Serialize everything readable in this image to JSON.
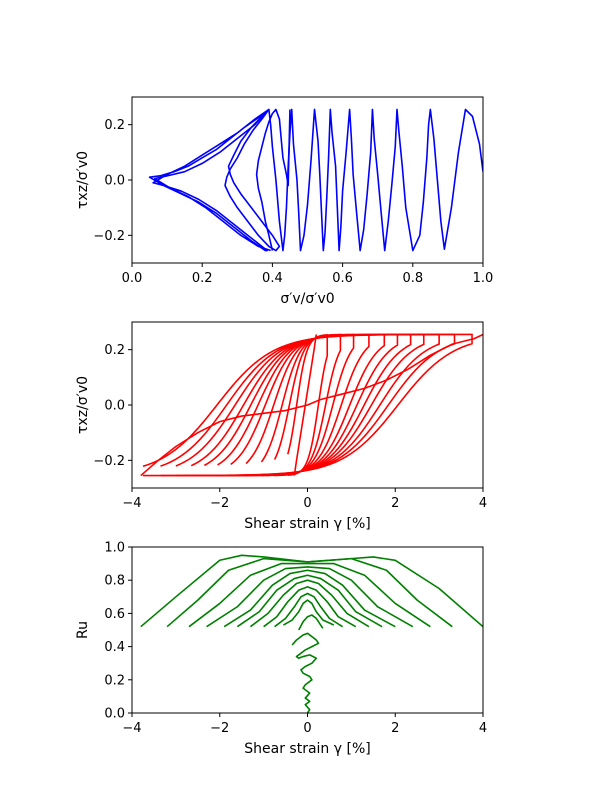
{
  "chart_data": [
    {
      "type": "line",
      "xlabel": "σ′v/σ′v0",
      "ylabel": "τxz/σ′v0",
      "xlim": [
        0.0,
        1.0
      ],
      "ylim": [
        -0.3,
        0.3
      ],
      "xticks": [
        0.0,
        0.2,
        0.4,
        0.6,
        0.8,
        1.0
      ],
      "xtick_labels": [
        "0.0",
        "0.2",
        "0.4",
        "0.6",
        "0.8",
        "1.0"
      ],
      "yticks": [
        -0.2,
        0.0,
        0.2
      ],
      "ytick_labels": [
        "−0.2",
        "0.0",
        "0.2"
      ],
      "grid": false,
      "color": "#0000ff",
      "series": [
        {
          "x": [
            1.0,
            0.99,
            0.97,
            0.95,
            0.93,
            0.91,
            0.89,
            0.88,
            0.87,
            0.86,
            0.85,
            0.845,
            0.84,
            0.83,
            0.82,
            0.8,
            0.78,
            0.77,
            0.76,
            0.755,
            0.75,
            0.74,
            0.73,
            0.72,
            0.71,
            0.7,
            0.69,
            0.685,
            0.68,
            0.67,
            0.66,
            0.65,
            0.64,
            0.63,
            0.625,
            0.62,
            0.61,
            0.6,
            0.595,
            0.59,
            0.585,
            0.58,
            0.57,
            0.565,
            0.56,
            0.555,
            0.55,
            0.545,
            0.54,
            0.535,
            0.53,
            0.52,
            0.51,
            0.5,
            0.49,
            0.48,
            0.475,
            0.47,
            0.46,
            0.455,
            0.45,
            0.445,
            0.44,
            0.435,
            0.43,
            0.42,
            0.41,
            0.4,
            0.395,
            0.39
          ],
          "y": [
            0.03,
            0.13,
            0.23,
            0.255,
            0.1,
            -0.1,
            -0.25,
            -0.15,
            0.0,
            0.15,
            0.255,
            0.2,
            0.08,
            -0.08,
            -0.2,
            -0.255,
            -0.1,
            0.05,
            0.18,
            0.255,
            0.12,
            -0.02,
            -0.15,
            -0.255,
            -0.12,
            0.02,
            0.15,
            0.255,
            0.1,
            -0.05,
            -0.18,
            -0.255,
            -0.12,
            0.02,
            0.15,
            0.255,
            0.1,
            -0.04,
            -0.17,
            -0.255,
            -0.1,
            0.05,
            0.17,
            0.255,
            0.08,
            -0.06,
            -0.19,
            -0.255,
            -0.12,
            0.02,
            0.14,
            0.255,
            0.07,
            -0.09,
            -0.2,
            -0.255,
            -0.12,
            0.0,
            0.13,
            0.255,
            0.17,
            0.05,
            -0.1,
            -0.2,
            -0.255,
            -0.15,
            0.0,
            0.12,
            0.2,
            0.255
          ]
        },
        {
          "x": [
            0.39,
            0.36,
            0.32,
            0.28,
            0.24,
            0.2,
            0.16,
            0.12,
            0.08,
            0.05,
            0.09,
            0.14,
            0.19,
            0.24,
            0.29,
            0.34,
            0.38,
            0.385,
            0.34,
            0.29,
            0.24,
            0.19,
            0.14,
            0.09,
            0.06,
            0.1,
            0.15,
            0.2,
            0.25,
            0.3,
            0.35,
            0.39,
            0.39,
            0.35,
            0.3,
            0.25,
            0.2,
            0.15,
            0.1,
            0.065,
            0.11,
            0.16,
            0.21,
            0.26,
            0.31,
            0.36,
            0.395
          ],
          "y": [
            0.255,
            0.225,
            0.19,
            0.15,
            0.11,
            0.08,
            0.05,
            0.03,
            0.015,
            0.01,
            -0.02,
            -0.05,
            -0.08,
            -0.12,
            -0.17,
            -0.22,
            -0.255,
            -0.255,
            -0.21,
            -0.16,
            -0.11,
            -0.07,
            -0.04,
            -0.02,
            -0.01,
            0.02,
            0.05,
            0.09,
            0.13,
            0.17,
            0.22,
            0.255,
            0.255,
            0.2,
            0.15,
            0.1,
            0.06,
            0.03,
            0.015,
            0.005,
            -0.03,
            -0.06,
            -0.1,
            -0.15,
            -0.2,
            -0.24,
            -0.255
          ]
        },
        {
          "x": [
            0.39,
            0.37,
            0.345,
            0.32,
            0.3,
            0.28,
            0.27,
            0.265,
            0.28,
            0.3,
            0.33,
            0.36,
            0.39,
            0.41,
            0.42,
            0.4,
            0.37,
            0.34,
            0.31,
            0.29,
            0.28,
            0.275,
            0.29,
            0.31,
            0.34,
            0.37,
            0.39
          ],
          "y": [
            0.255,
            0.22,
            0.18,
            0.13,
            0.08,
            0.04,
            0.01,
            -0.02,
            -0.06,
            -0.1,
            -0.15,
            -0.2,
            -0.24,
            -0.255,
            -0.24,
            -0.2,
            -0.15,
            -0.1,
            -0.05,
            -0.01,
            0.02,
            0.05,
            0.09,
            0.14,
            0.19,
            0.23,
            0.255
          ]
        },
        {
          "x": [
            0.4,
            0.39,
            0.38,
            0.37,
            0.36,
            0.355,
            0.36,
            0.37,
            0.38,
            0.39,
            0.4,
            0.41,
            0.42,
            0.425,
            0.43,
            0.44,
            0.445,
            0.45
          ],
          "y": [
            -0.255,
            -0.2,
            -0.15,
            -0.08,
            -0.03,
            0.02,
            0.07,
            0.12,
            0.17,
            0.21,
            0.24,
            0.255,
            0.22,
            0.15,
            0.08,
            0.02,
            -0.02,
            0.255
          ]
        }
      ]
    },
    {
      "type": "line",
      "xlabel": "Shear strain γ [%]",
      "ylabel": "τxz/σ′v0",
      "xlim": [
        -4,
        4
      ],
      "ylim": [
        -0.3,
        0.3
      ],
      "xticks": [
        -4,
        -2,
        0,
        2,
        4
      ],
      "xtick_labels": [
        "−4",
        "−2",
        "0",
        "2",
        "4"
      ],
      "yticks": [
        -0.2,
        0.0,
        0.2
      ],
      "ytick_labels": [
        "−0.2",
        "0.0",
        "0.2"
      ],
      "grid": false,
      "color": "#ff0000",
      "loop_amplitudes": [
        0.45,
        0.75,
        1.05,
        1.4,
        1.75,
        2.05,
        2.35,
        2.65,
        3.0,
        3.35,
        3.75
      ],
      "series": [
        {
          "x": [
            -3.8,
            -3.4,
            -3.0,
            -2.5,
            -2.0,
            -1.5,
            -1.0,
            -0.5,
            0.0,
            0.3,
            0.8,
            1.3,
            1.8,
            2.3,
            2.8,
            3.3,
            3.8,
            4.0
          ],
          "y": [
            -0.255,
            -0.2,
            -0.15,
            -0.1,
            -0.06,
            -0.04,
            -0.03,
            -0.02,
            0.0,
            0.02,
            0.04,
            0.06,
            0.09,
            0.13,
            0.18,
            0.22,
            0.24,
            0.255
          ]
        },
        {
          "x": [
            -0.3,
            -0.25,
            -0.2,
            -0.15,
            -0.1,
            -0.05,
            0.0,
            0.05,
            0.1,
            0.15,
            0.2
          ],
          "y": [
            -0.255,
            -0.2,
            -0.15,
            -0.1,
            -0.05,
            0.0,
            0.05,
            0.1,
            0.15,
            0.2,
            0.255
          ]
        }
      ]
    },
    {
      "type": "line",
      "xlabel": "Shear strain γ [%]",
      "ylabel": "Ru",
      "xlim": [
        -4,
        4
      ],
      "ylim": [
        0.0,
        1.0
      ],
      "xticks": [
        -4,
        -2,
        0,
        2,
        4
      ],
      "xtick_labels": [
        "−4",
        "−2",
        "0",
        "2",
        "4"
      ],
      "yticks": [
        0.0,
        0.2,
        0.4,
        0.6,
        0.8,
        1.0
      ],
      "ytick_labels": [
        "0.0",
        "0.2",
        "0.4",
        "0.6",
        "0.8",
        "1.0"
      ],
      "grid": false,
      "color": "#008000",
      "series": [
        {
          "x": [
            -3.8,
            -3.0,
            -2.0,
            -1.5,
            -1.0,
            0.0,
            1.0,
            1.5,
            2.0,
            3.0,
            4.0
          ],
          "y": [
            0.52,
            0.7,
            0.92,
            0.95,
            0.94,
            0.91,
            0.93,
            0.94,
            0.92,
            0.75,
            0.52
          ]
        },
        {
          "x": [
            -3.2,
            -2.5,
            -1.8,
            -1.0,
            0.0,
            1.0,
            1.8,
            2.5,
            3.3
          ],
          "y": [
            0.52,
            0.68,
            0.86,
            0.93,
            0.91,
            0.93,
            0.86,
            0.68,
            0.52
          ]
        },
        {
          "x": [
            -2.7,
            -2.0,
            -1.3,
            -0.6,
            0.0,
            0.6,
            1.3,
            2.0,
            2.8
          ],
          "y": [
            0.52,
            0.66,
            0.83,
            0.9,
            0.9,
            0.9,
            0.83,
            0.66,
            0.52
          ]
        },
        {
          "x": [
            -2.3,
            -1.6,
            -1.0,
            -0.5,
            0.0,
            0.5,
            1.0,
            1.6,
            2.4
          ],
          "y": [
            0.52,
            0.64,
            0.8,
            0.87,
            0.88,
            0.87,
            0.8,
            0.64,
            0.52
          ]
        },
        {
          "x": [
            -1.9,
            -1.3,
            -0.8,
            -0.4,
            0.0,
            0.4,
            0.8,
            1.3,
            2.0
          ],
          "y": [
            0.52,
            0.62,
            0.77,
            0.84,
            0.86,
            0.84,
            0.77,
            0.62,
            0.52
          ]
        },
        {
          "x": [
            -1.6,
            -1.1,
            -0.7,
            -0.3,
            0.0,
            0.3,
            0.7,
            1.1,
            1.7
          ],
          "y": [
            0.52,
            0.61,
            0.74,
            0.81,
            0.83,
            0.81,
            0.74,
            0.61,
            0.52
          ]
        },
        {
          "x": [
            -1.3,
            -0.9,
            -0.55,
            -0.25,
            0.0,
            0.25,
            0.55,
            0.9,
            1.4
          ],
          "y": [
            0.52,
            0.6,
            0.71,
            0.78,
            0.8,
            0.78,
            0.71,
            0.6,
            0.52
          ]
        },
        {
          "x": [
            -1.0,
            -0.7,
            -0.45,
            -0.2,
            0.0,
            0.2,
            0.45,
            0.7,
            1.1
          ],
          "y": [
            0.52,
            0.58,
            0.67,
            0.74,
            0.76,
            0.74,
            0.67,
            0.58,
            0.52
          ]
        },
        {
          "x": [
            -0.75,
            -0.5,
            -0.3,
            -0.15,
            0.0,
            0.15,
            0.3,
            0.5,
            0.8
          ],
          "y": [
            0.52,
            0.57,
            0.64,
            0.7,
            0.72,
            0.7,
            0.64,
            0.57,
            0.52
          ]
        },
        {
          "x": [
            -0.55,
            -0.35,
            -0.2,
            -0.1,
            0.0,
            0.1,
            0.2,
            0.35,
            0.6
          ],
          "y": [
            0.53,
            0.56,
            0.61,
            0.66,
            0.68,
            0.66,
            0.61,
            0.56,
            0.53
          ]
        },
        {
          "x": [
            -0.2,
            -0.1,
            0.0,
            0.1,
            0.2,
            0.25,
            0.3,
            0.35
          ],
          "y": [
            0.5,
            0.55,
            0.58,
            0.59,
            0.57,
            0.55,
            0.53,
            0.51
          ]
        },
        {
          "x": [
            -0.35,
            -0.25,
            -0.1,
            0.0,
            0.1,
            0.2,
            0.25,
            0.1,
            -0.05,
            -0.15,
            -0.25,
            -0.2,
            -0.1,
            0.05,
            0.2,
            0.1,
            -0.05,
            -0.15,
            -0.1,
            0.05,
            0.1,
            -0.05,
            -0.1,
            0.05,
            -0.05,
            0.05,
            -0.05,
            0.05,
            0.0
          ],
          "y": [
            0.41,
            0.44,
            0.47,
            0.48,
            0.46,
            0.44,
            0.42,
            0.4,
            0.38,
            0.36,
            0.34,
            0.33,
            0.34,
            0.35,
            0.33,
            0.3,
            0.28,
            0.26,
            0.24,
            0.22,
            0.2,
            0.17,
            0.15,
            0.12,
            0.09,
            0.07,
            0.05,
            0.02,
            0.0
          ]
        }
      ]
    }
  ]
}
